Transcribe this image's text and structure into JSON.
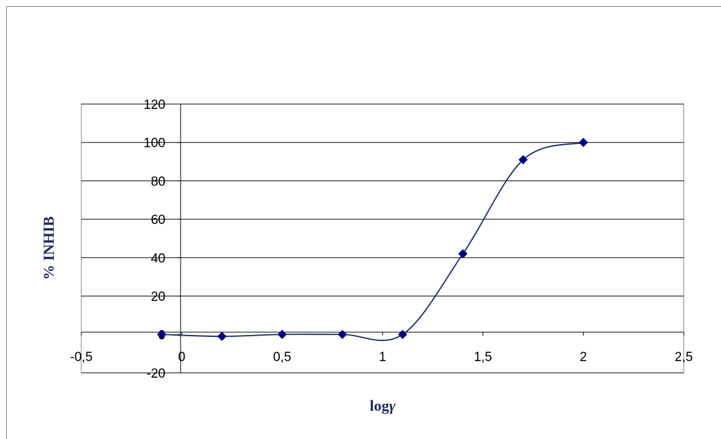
{
  "chart_data": {
    "type": "scatter",
    "title": "",
    "xlabel_main": "log",
    "xlabel_symbol": "γ",
    "ylabel": "% INHIB",
    "xlim": [
      -0.5,
      2.5
    ],
    "ylim": [
      -20,
      120
    ],
    "x_ticks": [
      -0.5,
      0,
      0.5,
      1,
      1.5,
      2,
      2.5
    ],
    "x_tick_labels": [
      "-0,5",
      "0",
      "0,5",
      "1",
      "1,5",
      "2",
      "2,5"
    ],
    "y_ticks": [
      -20,
      0,
      20,
      40,
      60,
      80,
      100,
      120
    ],
    "y_tick_labels": [
      "-20",
      "0",
      "20",
      "40",
      "60",
      "80",
      "100",
      "120"
    ],
    "grid": "horizontal major gridlines",
    "smoothed_line": true,
    "marker": "diamond",
    "series": [
      {
        "points": [
          {
            "x": -0.1,
            "y": 0
          },
          {
            "x": 0.2,
            "y": -1
          },
          {
            "x": 0.5,
            "y": 0
          },
          {
            "x": 0.8,
            "y": 0
          },
          {
            "x": 1.1,
            "y": 0
          },
          {
            "x": 1.4,
            "y": 42
          },
          {
            "x": 1.7,
            "y": 91
          },
          {
            "x": 2.0,
            "y": 100
          }
        ]
      }
    ],
    "colors": {
      "series": "#1a2a6c",
      "marker": "#000080",
      "gridline": "#000000",
      "plot_border": "#808080",
      "axis_title": "#1f2a5c"
    }
  }
}
